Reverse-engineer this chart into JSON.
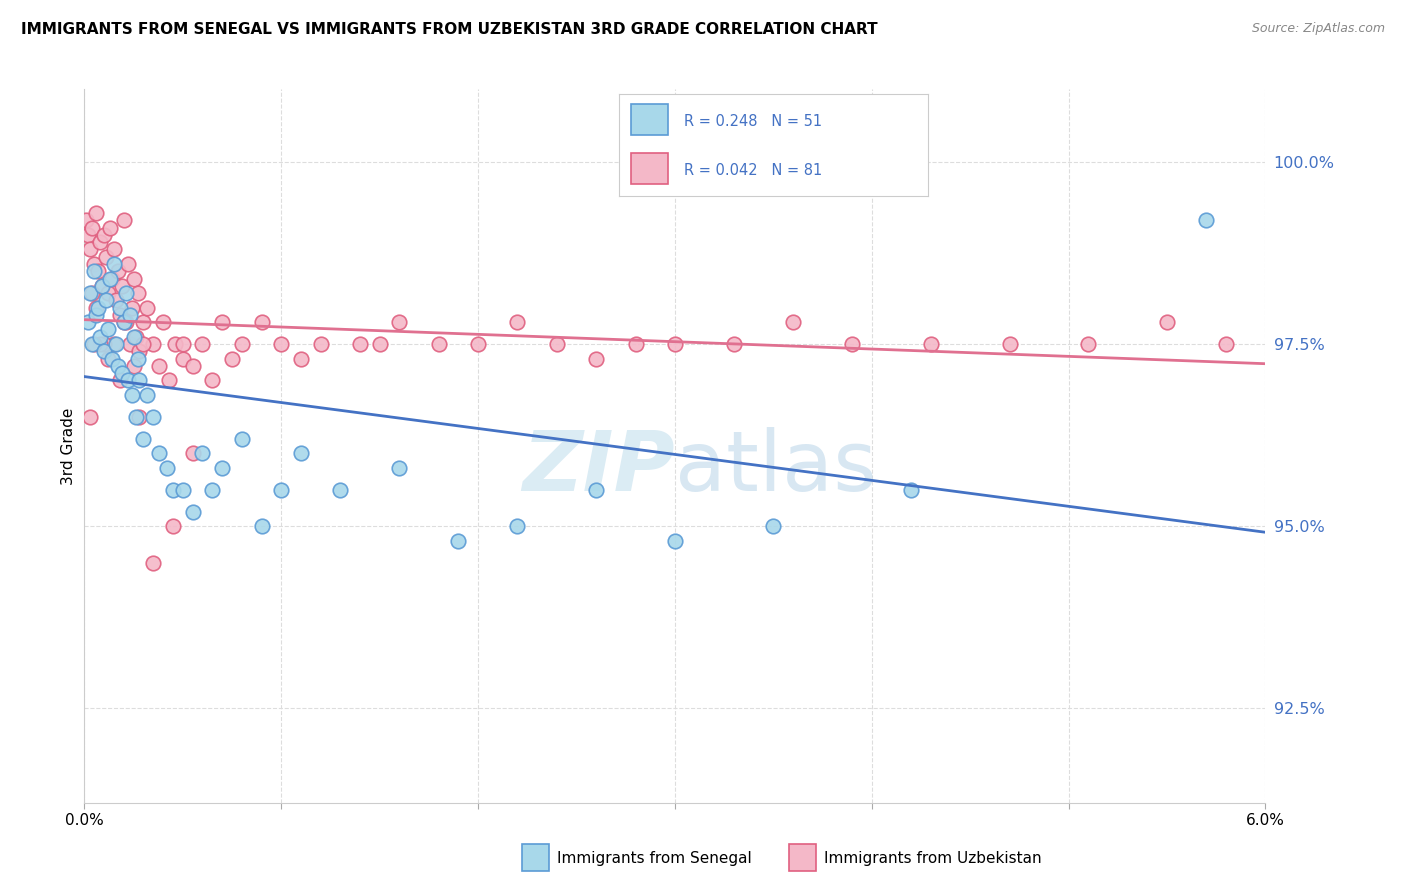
{
  "title": "IMMIGRANTS FROM SENEGAL VS IMMIGRANTS FROM UZBEKISTAN 3RD GRADE CORRELATION CHART",
  "source": "Source: ZipAtlas.com",
  "ylabel": "3rd Grade",
  "y_ticks": [
    92.5,
    95.0,
    97.5,
    100.0
  ],
  "y_tick_labels": [
    "92.5%",
    "95.0%",
    "97.5%",
    "100.0%"
  ],
  "x_min": 0.0,
  "x_max": 6.0,
  "y_min": 91.2,
  "y_max": 101.0,
  "legend_r1": "R = 0.248",
  "legend_n1": "N = 51",
  "legend_r2": "R = 0.042",
  "legend_n2": "N = 81",
  "color_senegal_face": "#a8d8ea",
  "color_senegal_edge": "#5b9bd5",
  "color_uzbekistan_face": "#f4b8c8",
  "color_uzbekistan_edge": "#e06080",
  "color_line_senegal": "#4472C4",
  "color_line_uzbekistan": "#e07090",
  "color_text_blue": "#4472C4",
  "watermark_color": "#cce4f0",
  "senegal_x": [
    0.02,
    0.03,
    0.04,
    0.05,
    0.06,
    0.07,
    0.08,
    0.09,
    0.1,
    0.11,
    0.12,
    0.13,
    0.14,
    0.15,
    0.16,
    0.17,
    0.18,
    0.19,
    0.2,
    0.21,
    0.22,
    0.23,
    0.24,
    0.25,
    0.26,
    0.27,
    0.28,
    0.3,
    0.32,
    0.35,
    0.38,
    0.42,
    0.45,
    0.5,
    0.55,
    0.6,
    0.65,
    0.7,
    0.8,
    0.9,
    1.0,
    1.1,
    1.3,
    1.6,
    1.9,
    2.2,
    2.6,
    3.0,
    3.5,
    4.2,
    5.7
  ],
  "senegal_y": [
    97.8,
    98.2,
    97.5,
    98.5,
    97.9,
    98.0,
    97.6,
    98.3,
    97.4,
    98.1,
    97.7,
    98.4,
    97.3,
    98.6,
    97.5,
    97.2,
    98.0,
    97.1,
    97.8,
    98.2,
    97.0,
    97.9,
    96.8,
    97.6,
    96.5,
    97.3,
    97.0,
    96.2,
    96.8,
    96.5,
    96.0,
    95.8,
    95.5,
    95.5,
    95.2,
    96.0,
    95.5,
    95.8,
    96.2,
    95.0,
    95.5,
    96.0,
    95.5,
    95.8,
    94.8,
    95.0,
    95.5,
    94.8,
    95.0,
    95.5,
    99.2
  ],
  "uzbekistan_x": [
    0.01,
    0.02,
    0.03,
    0.04,
    0.05,
    0.06,
    0.07,
    0.08,
    0.09,
    0.1,
    0.11,
    0.12,
    0.13,
    0.14,
    0.15,
    0.16,
    0.17,
    0.18,
    0.19,
    0.2,
    0.21,
    0.22,
    0.23,
    0.24,
    0.25,
    0.26,
    0.27,
    0.28,
    0.3,
    0.32,
    0.35,
    0.38,
    0.4,
    0.43,
    0.46,
    0.5,
    0.55,
    0.6,
    0.65,
    0.7,
    0.75,
    0.8,
    0.9,
    1.0,
    1.1,
    1.2,
    1.4,
    1.6,
    1.8,
    2.0,
    2.2,
    2.4,
    2.6,
    2.8,
    3.0,
    3.3,
    3.6,
    3.9,
    4.3,
    4.7,
    5.1,
    5.5,
    5.8,
    1.5,
    0.5,
    0.3,
    0.2,
    0.15,
    0.1,
    0.08,
    0.06,
    0.05,
    0.04,
    0.03,
    0.25,
    0.45,
    0.55,
    0.35,
    0.28,
    0.18,
    0.12
  ],
  "uzbekistan_y": [
    99.2,
    99.0,
    98.8,
    99.1,
    98.6,
    99.3,
    98.5,
    98.9,
    98.3,
    99.0,
    98.7,
    98.2,
    99.1,
    98.4,
    98.8,
    98.1,
    98.5,
    97.9,
    98.3,
    99.2,
    97.8,
    98.6,
    97.5,
    98.0,
    98.4,
    97.6,
    98.2,
    97.4,
    97.8,
    98.0,
    97.5,
    97.2,
    97.8,
    97.0,
    97.5,
    97.3,
    97.2,
    97.5,
    97.0,
    97.8,
    97.3,
    97.5,
    97.8,
    97.5,
    97.3,
    97.5,
    97.5,
    97.8,
    97.5,
    97.5,
    97.8,
    97.5,
    97.3,
    97.5,
    97.5,
    97.5,
    97.8,
    97.5,
    97.5,
    97.5,
    97.5,
    97.8,
    97.5,
    97.5,
    97.5,
    97.5,
    97.8,
    97.5,
    97.5,
    97.5,
    98.0,
    97.5,
    98.2,
    96.5,
    97.2,
    95.0,
    96.0,
    94.5,
    96.5,
    97.0,
    97.3
  ]
}
